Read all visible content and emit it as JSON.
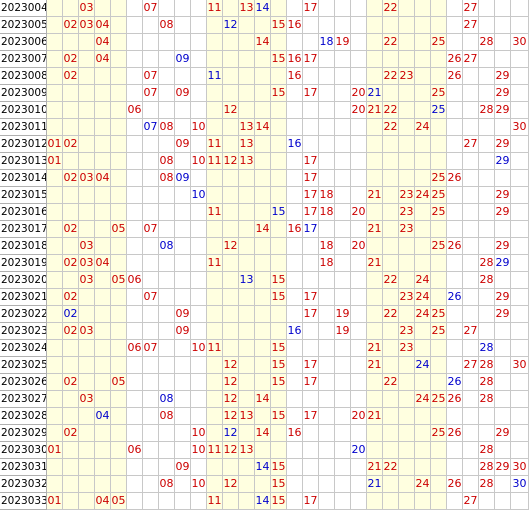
{
  "colors": {
    "red": "#cc0000",
    "blue": "#0000cc",
    "band": "#ffffe0",
    "grid_line": "#c8c8c8"
  },
  "bands": [
    [
      "01",
      "05"
    ],
    [
      "11",
      "15"
    ],
    [
      "21",
      "25"
    ]
  ],
  "columns": [
    "01",
    "02",
    "03",
    "04",
    "05",
    "06",
    "07",
    "08",
    "09",
    "10",
    "11",
    "12",
    "13",
    "14",
    "15",
    "16",
    "17",
    "18",
    "19",
    "20",
    "21",
    "22",
    "23",
    "24",
    "25",
    "26",
    "27",
    "28",
    "29",
    "30"
  ],
  "rows": [
    {
      "period": "2023004",
      "numbers": [
        {
          "n": "03",
          "c": "red"
        },
        {
          "n": "07",
          "c": "red"
        },
        {
          "n": "11",
          "c": "red"
        },
        {
          "n": "13",
          "c": "red"
        },
        {
          "n": "14",
          "c": "blue"
        },
        {
          "n": "17",
          "c": "red"
        },
        {
          "n": "22",
          "c": "red"
        },
        {
          "n": "27",
          "c": "red"
        }
      ]
    },
    {
      "period": "2023005",
      "numbers": [
        {
          "n": "02",
          "c": "red"
        },
        {
          "n": "03",
          "c": "red"
        },
        {
          "n": "04",
          "c": "red"
        },
        {
          "n": "08",
          "c": "red"
        },
        {
          "n": "12",
          "c": "blue"
        },
        {
          "n": "15",
          "c": "red"
        },
        {
          "n": "16",
          "c": "red"
        },
        {
          "n": "27",
          "c": "red"
        }
      ]
    },
    {
      "period": "2023006",
      "numbers": [
        {
          "n": "04",
          "c": "red"
        },
        {
          "n": "14",
          "c": "red"
        },
        {
          "n": "18",
          "c": "blue"
        },
        {
          "n": "19",
          "c": "red"
        },
        {
          "n": "22",
          "c": "red"
        },
        {
          "n": "25",
          "c": "red"
        },
        {
          "n": "28",
          "c": "red"
        },
        {
          "n": "30",
          "c": "red"
        }
      ]
    },
    {
      "period": "2023007",
      "numbers": [
        {
          "n": "02",
          "c": "red"
        },
        {
          "n": "04",
          "c": "red"
        },
        {
          "n": "09",
          "c": "blue"
        },
        {
          "n": "15",
          "c": "red"
        },
        {
          "n": "16",
          "c": "red"
        },
        {
          "n": "17",
          "c": "red"
        },
        {
          "n": "26",
          "c": "red"
        },
        {
          "n": "27",
          "c": "red"
        }
      ]
    },
    {
      "period": "2023008",
      "numbers": [
        {
          "n": "02",
          "c": "red"
        },
        {
          "n": "07",
          "c": "red"
        },
        {
          "n": "11",
          "c": "blue"
        },
        {
          "n": "16",
          "c": "red"
        },
        {
          "n": "22",
          "c": "red"
        },
        {
          "n": "23",
          "c": "red"
        },
        {
          "n": "26",
          "c": "red"
        },
        {
          "n": "29",
          "c": "red"
        }
      ]
    },
    {
      "period": "2023009",
      "numbers": [
        {
          "n": "07",
          "c": "red"
        },
        {
          "n": "09",
          "c": "red"
        },
        {
          "n": "15",
          "c": "red"
        },
        {
          "n": "17",
          "c": "red"
        },
        {
          "n": "20",
          "c": "red"
        },
        {
          "n": "21",
          "c": "blue"
        },
        {
          "n": "25",
          "c": "red"
        },
        {
          "n": "29",
          "c": "red"
        }
      ]
    },
    {
      "period": "2023010",
      "numbers": [
        {
          "n": "06",
          "c": "red"
        },
        {
          "n": "12",
          "c": "red"
        },
        {
          "n": "20",
          "c": "red"
        },
        {
          "n": "21",
          "c": "red"
        },
        {
          "n": "22",
          "c": "red"
        },
        {
          "n": "25",
          "c": "blue"
        },
        {
          "n": "28",
          "c": "red"
        },
        {
          "n": "29",
          "c": "red"
        }
      ]
    },
    {
      "period": "2023011",
      "numbers": [
        {
          "n": "07",
          "c": "blue"
        },
        {
          "n": "08",
          "c": "red"
        },
        {
          "n": "10",
          "c": "red"
        },
        {
          "n": "13",
          "c": "red"
        },
        {
          "n": "14",
          "c": "red"
        },
        {
          "n": "22",
          "c": "red"
        },
        {
          "n": "24",
          "c": "red"
        },
        {
          "n": "30",
          "c": "red"
        }
      ]
    },
    {
      "period": "2023012",
      "numbers": [
        {
          "n": "01",
          "c": "red"
        },
        {
          "n": "02",
          "c": "red"
        },
        {
          "n": "09",
          "c": "red"
        },
        {
          "n": "11",
          "c": "red"
        },
        {
          "n": "13",
          "c": "red"
        },
        {
          "n": "16",
          "c": "blue"
        },
        {
          "n": "27",
          "c": "red"
        },
        {
          "n": "29",
          "c": "red"
        }
      ]
    },
    {
      "period": "2023013",
      "numbers": [
        {
          "n": "01",
          "c": "red"
        },
        {
          "n": "08",
          "c": "red"
        },
        {
          "n": "10",
          "c": "red"
        },
        {
          "n": "11",
          "c": "red"
        },
        {
          "n": "12",
          "c": "red"
        },
        {
          "n": "13",
          "c": "red"
        },
        {
          "n": "17",
          "c": "red"
        },
        {
          "n": "29",
          "c": "blue"
        }
      ]
    },
    {
      "period": "2023014",
      "numbers": [
        {
          "n": "02",
          "c": "red"
        },
        {
          "n": "03",
          "c": "red"
        },
        {
          "n": "04",
          "c": "red"
        },
        {
          "n": "08",
          "c": "red"
        },
        {
          "n": "09",
          "c": "blue"
        },
        {
          "n": "17",
          "c": "red"
        },
        {
          "n": "25",
          "c": "red"
        },
        {
          "n": "26",
          "c": "red"
        }
      ]
    },
    {
      "period": "2023015",
      "numbers": [
        {
          "n": "10",
          "c": "blue"
        },
        {
          "n": "17",
          "c": "red"
        },
        {
          "n": "18",
          "c": "red"
        },
        {
          "n": "21",
          "c": "red"
        },
        {
          "n": "23",
          "c": "red"
        },
        {
          "n": "24",
          "c": "red"
        },
        {
          "n": "25",
          "c": "red"
        },
        {
          "n": "29",
          "c": "red"
        }
      ]
    },
    {
      "period": "2023016",
      "numbers": [
        {
          "n": "11",
          "c": "red"
        },
        {
          "n": "15",
          "c": "blue"
        },
        {
          "n": "17",
          "c": "red"
        },
        {
          "n": "18",
          "c": "red"
        },
        {
          "n": "20",
          "c": "red"
        },
        {
          "n": "23",
          "c": "red"
        },
        {
          "n": "25",
          "c": "red"
        },
        {
          "n": "29",
          "c": "red"
        }
      ]
    },
    {
      "period": "2023017",
      "numbers": [
        {
          "n": "02",
          "c": "red"
        },
        {
          "n": "05",
          "c": "red"
        },
        {
          "n": "07",
          "c": "red"
        },
        {
          "n": "14",
          "c": "red"
        },
        {
          "n": "16",
          "c": "red"
        },
        {
          "n": "17",
          "c": "blue"
        },
        {
          "n": "21",
          "c": "red"
        },
        {
          "n": "23",
          "c": "red"
        }
      ]
    },
    {
      "period": "2023018",
      "numbers": [
        {
          "n": "03",
          "c": "red"
        },
        {
          "n": "08",
          "c": "blue"
        },
        {
          "n": "12",
          "c": "red"
        },
        {
          "n": "18",
          "c": "red"
        },
        {
          "n": "20",
          "c": "red"
        },
        {
          "n": "25",
          "c": "red"
        },
        {
          "n": "26",
          "c": "red"
        },
        {
          "n": "29",
          "c": "red"
        }
      ]
    },
    {
      "period": "2023019",
      "numbers": [
        {
          "n": "02",
          "c": "red"
        },
        {
          "n": "03",
          "c": "red"
        },
        {
          "n": "04",
          "c": "red"
        },
        {
          "n": "11",
          "c": "red"
        },
        {
          "n": "18",
          "c": "red"
        },
        {
          "n": "21",
          "c": "red"
        },
        {
          "n": "28",
          "c": "red"
        },
        {
          "n": "29",
          "c": "blue"
        }
      ]
    },
    {
      "period": "2023020",
      "numbers": [
        {
          "n": "03",
          "c": "red"
        },
        {
          "n": "05",
          "c": "red"
        },
        {
          "n": "06",
          "c": "red"
        },
        {
          "n": "13",
          "c": "blue"
        },
        {
          "n": "15",
          "c": "red"
        },
        {
          "n": "22",
          "c": "red"
        },
        {
          "n": "24",
          "c": "red"
        },
        {
          "n": "28",
          "c": "red"
        }
      ]
    },
    {
      "period": "2023021",
      "numbers": [
        {
          "n": "02",
          "c": "red"
        },
        {
          "n": "07",
          "c": "red"
        },
        {
          "n": "15",
          "c": "red"
        },
        {
          "n": "17",
          "c": "red"
        },
        {
          "n": "23",
          "c": "red"
        },
        {
          "n": "24",
          "c": "red"
        },
        {
          "n": "26",
          "c": "blue"
        },
        {
          "n": "29",
          "c": "red"
        }
      ]
    },
    {
      "period": "2023022",
      "numbers": [
        {
          "n": "02",
          "c": "blue"
        },
        {
          "n": "09",
          "c": "red"
        },
        {
          "n": "17",
          "c": "red"
        },
        {
          "n": "19",
          "c": "red"
        },
        {
          "n": "22",
          "c": "red"
        },
        {
          "n": "24",
          "c": "red"
        },
        {
          "n": "25",
          "c": "red"
        },
        {
          "n": "29",
          "c": "red"
        }
      ]
    },
    {
      "period": "2023023",
      "numbers": [
        {
          "n": "02",
          "c": "red"
        },
        {
          "n": "03",
          "c": "red"
        },
        {
          "n": "09",
          "c": "red"
        },
        {
          "n": "16",
          "c": "blue"
        },
        {
          "n": "19",
          "c": "red"
        },
        {
          "n": "23",
          "c": "red"
        },
        {
          "n": "25",
          "c": "red"
        },
        {
          "n": "27",
          "c": "red"
        }
      ]
    },
    {
      "period": "2023024",
      "numbers": [
        {
          "n": "06",
          "c": "red"
        },
        {
          "n": "07",
          "c": "red"
        },
        {
          "n": "10",
          "c": "red"
        },
        {
          "n": "11",
          "c": "red"
        },
        {
          "n": "15",
          "c": "red"
        },
        {
          "n": "21",
          "c": "red"
        },
        {
          "n": "23",
          "c": "red"
        },
        {
          "n": "28",
          "c": "blue"
        }
      ]
    },
    {
      "period": "2023025",
      "numbers": [
        {
          "n": "12",
          "c": "red"
        },
        {
          "n": "15",
          "c": "red"
        },
        {
          "n": "17",
          "c": "red"
        },
        {
          "n": "21",
          "c": "red"
        },
        {
          "n": "24",
          "c": "blue"
        },
        {
          "n": "27",
          "c": "red"
        },
        {
          "n": "28",
          "c": "red"
        },
        {
          "n": "30",
          "c": "red"
        }
      ]
    },
    {
      "period": "2023026",
      "numbers": [
        {
          "n": "02",
          "c": "red"
        },
        {
          "n": "05",
          "c": "red"
        },
        {
          "n": "12",
          "c": "red"
        },
        {
          "n": "15",
          "c": "red"
        },
        {
          "n": "17",
          "c": "red"
        },
        {
          "n": "22",
          "c": "red"
        },
        {
          "n": "26",
          "c": "blue"
        },
        {
          "n": "28",
          "c": "red"
        }
      ]
    },
    {
      "period": "2023027",
      "numbers": [
        {
          "n": "03",
          "c": "red"
        },
        {
          "n": "08",
          "c": "blue"
        },
        {
          "n": "12",
          "c": "red"
        },
        {
          "n": "14",
          "c": "red"
        },
        {
          "n": "24",
          "c": "red"
        },
        {
          "n": "25",
          "c": "red"
        },
        {
          "n": "26",
          "c": "red"
        },
        {
          "n": "28",
          "c": "red"
        }
      ]
    },
    {
      "period": "2023028",
      "numbers": [
        {
          "n": "04",
          "c": "blue"
        },
        {
          "n": "08",
          "c": "red"
        },
        {
          "n": "12",
          "c": "red"
        },
        {
          "n": "13",
          "c": "red"
        },
        {
          "n": "15",
          "c": "red"
        },
        {
          "n": "17",
          "c": "red"
        },
        {
          "n": "20",
          "c": "red"
        },
        {
          "n": "21",
          "c": "red"
        }
      ]
    },
    {
      "period": "2023029",
      "numbers": [
        {
          "n": "02",
          "c": "red"
        },
        {
          "n": "10",
          "c": "red"
        },
        {
          "n": "12",
          "c": "blue"
        },
        {
          "n": "14",
          "c": "red"
        },
        {
          "n": "16",
          "c": "red"
        },
        {
          "n": "25",
          "c": "red"
        },
        {
          "n": "26",
          "c": "red"
        },
        {
          "n": "29",
          "c": "red"
        }
      ]
    },
    {
      "period": "2023030",
      "numbers": [
        {
          "n": "01",
          "c": "red"
        },
        {
          "n": "06",
          "c": "red"
        },
        {
          "n": "10",
          "c": "red"
        },
        {
          "n": "11",
          "c": "red"
        },
        {
          "n": "12",
          "c": "red"
        },
        {
          "n": "13",
          "c": "red"
        },
        {
          "n": "20",
          "c": "blue"
        },
        {
          "n": "28",
          "c": "red"
        }
      ]
    },
    {
      "period": "2023031",
      "numbers": [
        {
          "n": "09",
          "c": "red"
        },
        {
          "n": "14",
          "c": "blue"
        },
        {
          "n": "15",
          "c": "red"
        },
        {
          "n": "21",
          "c": "red"
        },
        {
          "n": "22",
          "c": "red"
        },
        {
          "n": "28",
          "c": "red"
        },
        {
          "n": "29",
          "c": "red"
        },
        {
          "n": "30",
          "c": "red"
        }
      ]
    },
    {
      "period": "2023032",
      "numbers": [
        {
          "n": "08",
          "c": "red"
        },
        {
          "n": "10",
          "c": "red"
        },
        {
          "n": "12",
          "c": "red"
        },
        {
          "n": "15",
          "c": "red"
        },
        {
          "n": "21",
          "c": "blue"
        },
        {
          "n": "24",
          "c": "red"
        },
        {
          "n": "26",
          "c": "red"
        },
        {
          "n": "28",
          "c": "red"
        },
        {
          "n": "30",
          "c": "blue"
        }
      ]
    },
    {
      "period": "2023033",
      "numbers": [
        {
          "n": "01",
          "c": "red"
        },
        {
          "n": "04",
          "c": "red"
        },
        {
          "n": "05",
          "c": "red"
        },
        {
          "n": "11",
          "c": "red"
        },
        {
          "n": "14",
          "c": "blue"
        },
        {
          "n": "15",
          "c": "red"
        },
        {
          "n": "17",
          "c": "red"
        },
        {
          "n": "27",
          "c": "red"
        }
      ]
    }
  ]
}
